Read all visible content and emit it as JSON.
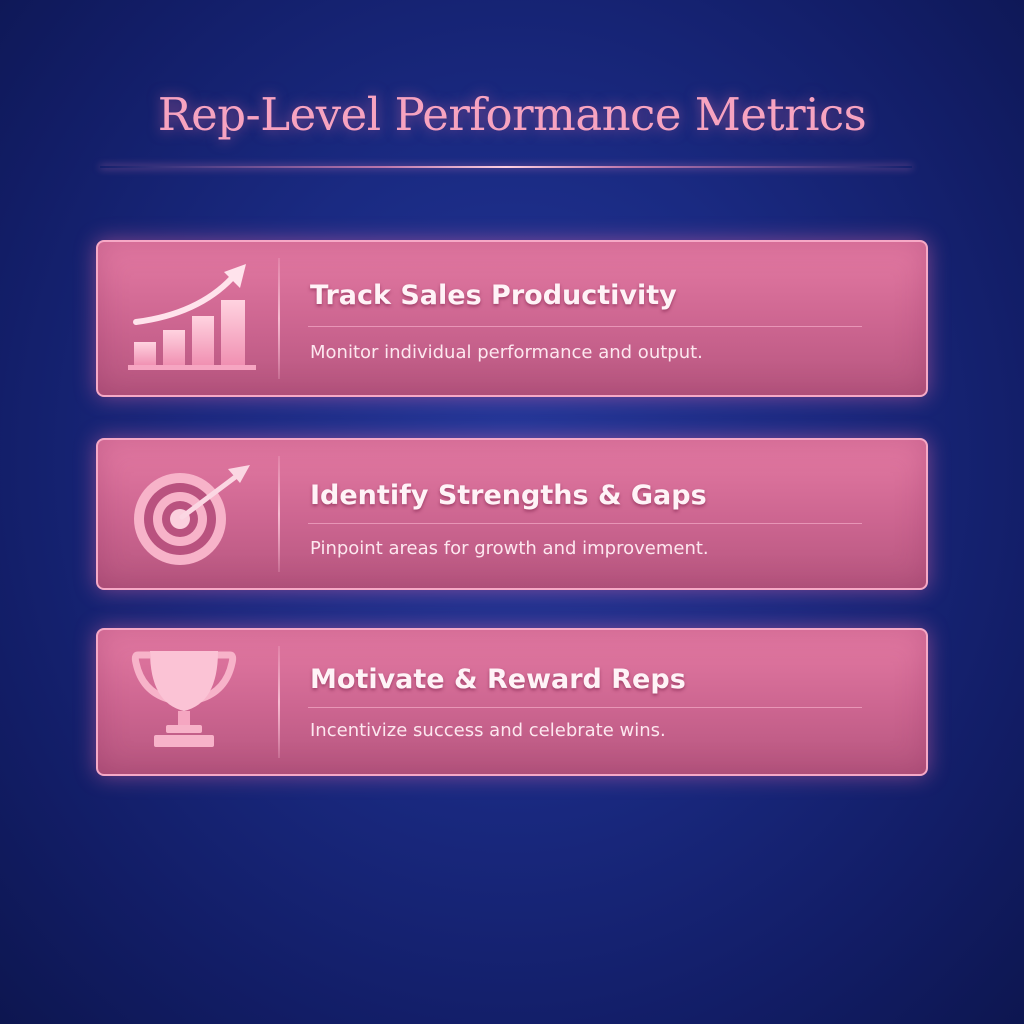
{
  "title": "Rep-Level Performance Metrics",
  "colors": {
    "background": "#1a2a82",
    "accent": "#f7a3c0",
    "card": "#d46c97"
  },
  "cards": [
    {
      "icon": "bar-chart-arrow-icon",
      "heading": "Track Sales Productivity",
      "description": "Monitor individual performance and output."
    },
    {
      "icon": "target-arrow-icon",
      "heading": "Identify Strengths & Gaps",
      "description": "Pinpoint areas for growth and improvement."
    },
    {
      "icon": "trophy-icon",
      "heading": "Motivate & Reward Reps",
      "description": "Incentivize success and celebrate wins."
    }
  ]
}
